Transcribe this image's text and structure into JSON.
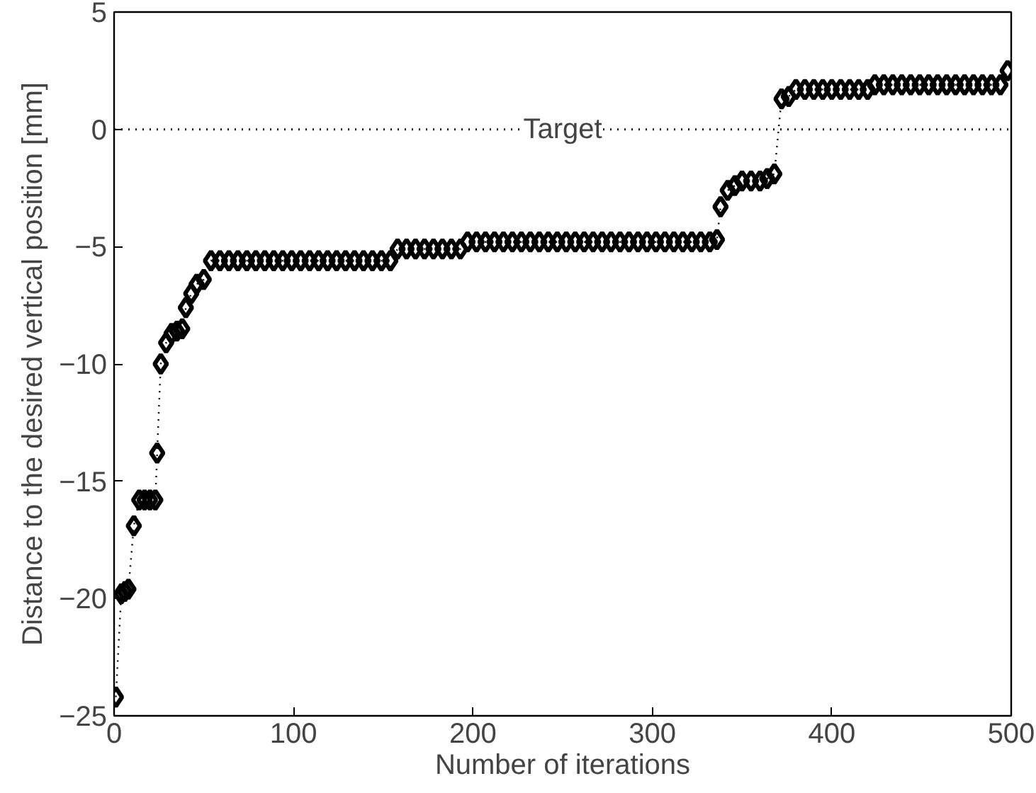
{
  "chart_data": {
    "type": "line",
    "xlabel": "Number of iterations",
    "ylabel": "Distance to the desired vertical position [mm]",
    "xlim": [
      0,
      500
    ],
    "ylim": [
      -25,
      5
    ],
    "xticks": [
      0,
      100,
      200,
      300,
      400,
      500
    ],
    "yticks": [
      {
        "value": -25,
        "label": "−25"
      },
      {
        "value": -20,
        "label": "−20"
      },
      {
        "value": -15,
        "label": "−15"
      },
      {
        "value": -10,
        "label": "−10"
      },
      {
        "value": -5,
        "label": "−5"
      },
      0,
      5
    ],
    "marker": "diamond",
    "line_style": "dotted",
    "ref_lines": [
      {
        "axis": "y",
        "value": 0,
        "label": "Target",
        "color": "#000000",
        "line_style": "dotted"
      }
    ],
    "series": [
      {
        "color": "#000000",
        "x": [
          1,
          4,
          6,
          8,
          11,
          14,
          17,
          20,
          23,
          24,
          26,
          29,
          32,
          35,
          38,
          40,
          43,
          46,
          50,
          54,
          59,
          64,
          69,
          74,
          79,
          84,
          89,
          94,
          99,
          104,
          109,
          114,
          119,
          124,
          129,
          134,
          139,
          144,
          149,
          154,
          158,
          163,
          168,
          173,
          178,
          183,
          188,
          193,
          197,
          202,
          207,
          212,
          217,
          222,
          227,
          232,
          237,
          242,
          247,
          252,
          257,
          262,
          267,
          272,
          277,
          282,
          287,
          292,
          297,
          302,
          307,
          312,
          317,
          322,
          327,
          332,
          336,
          338,
          342,
          346,
          350,
          355,
          360,
          364,
          368,
          372,
          376,
          380,
          385,
          390,
          395,
          400,
          405,
          410,
          415,
          420,
          424,
          429,
          434,
          439,
          444,
          449,
          454,
          459,
          464,
          469,
          474,
          479,
          484,
          489,
          494,
          498
        ],
        "values": [
          -24.2,
          -19.8,
          -19.7,
          -19.6,
          -16.9,
          -15.8,
          -15.8,
          -15.8,
          -15.8,
          -13.8,
          -10.0,
          -9.1,
          -8.7,
          -8.6,
          -8.5,
          -7.6,
          -7.0,
          -6.6,
          -6.4,
          -5.6,
          -5.6,
          -5.6,
          -5.6,
          -5.6,
          -5.6,
          -5.6,
          -5.6,
          -5.6,
          -5.6,
          -5.6,
          -5.6,
          -5.6,
          -5.6,
          -5.6,
          -5.6,
          -5.6,
          -5.6,
          -5.6,
          -5.6,
          -5.6,
          -5.1,
          -5.1,
          -5.1,
          -5.1,
          -5.1,
          -5.1,
          -5.1,
          -5.1,
          -4.8,
          -4.8,
          -4.8,
          -4.8,
          -4.8,
          -4.8,
          -4.8,
          -4.8,
          -4.8,
          -4.8,
          -4.8,
          -4.8,
          -4.8,
          -4.8,
          -4.8,
          -4.8,
          -4.8,
          -4.8,
          -4.8,
          -4.8,
          -4.8,
          -4.8,
          -4.8,
          -4.8,
          -4.8,
          -4.8,
          -4.8,
          -4.8,
          -4.7,
          -3.3,
          -2.6,
          -2.4,
          -2.2,
          -2.2,
          -2.2,
          -2.1,
          -1.9,
          1.3,
          1.4,
          1.7,
          1.7,
          1.7,
          1.7,
          1.7,
          1.7,
          1.7,
          1.7,
          1.7,
          1.9,
          1.9,
          1.9,
          1.9,
          1.9,
          1.9,
          1.9,
          1.9,
          1.9,
          1.9,
          1.9,
          1.9,
          1.9,
          1.9,
          1.9,
          2.5
        ]
      }
    ]
  }
}
